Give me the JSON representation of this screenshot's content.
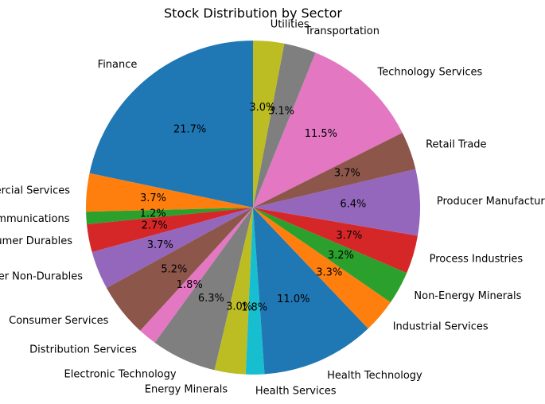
{
  "chart_data": {
    "type": "pie",
    "title": "Stock Distribution by Sector",
    "start_angle_deg": 90,
    "direction": "counterclockwise",
    "slices": [
      {
        "label": "Finance",
        "value": 21.7,
        "pct_label": "21.7%",
        "color": "#1f77b4"
      },
      {
        "label": "Commercial Services",
        "value": 3.7,
        "pct_label": "3.7%",
        "color": "#ff7f0e"
      },
      {
        "label": "Communications",
        "value": 1.2,
        "pct_label": "1.2%",
        "color": "#2ca02c"
      },
      {
        "label": "Consumer Durables",
        "value": 2.7,
        "pct_label": "2.7%",
        "color": "#d62728"
      },
      {
        "label": "Consumer Non-Durables",
        "value": 3.7,
        "pct_label": "3.7%",
        "color": "#9467bd"
      },
      {
        "label": "Consumer Services",
        "value": 5.2,
        "pct_label": "5.2%",
        "color": "#8c564b"
      },
      {
        "label": "Distribution Services",
        "value": 1.8,
        "pct_label": "1.8%",
        "color": "#e377c2"
      },
      {
        "label": "Electronic Technology",
        "value": 6.3,
        "pct_label": "6.3%",
        "color": "#7f7f7f"
      },
      {
        "label": "Energy Minerals",
        "value": 3.0,
        "pct_label": "3.0%",
        "color": "#bcbd22"
      },
      {
        "label": "Health Services",
        "value": 1.8,
        "pct_label": "1.8%",
        "color": "#17becf"
      },
      {
        "label": "Health Technology",
        "value": 11.0,
        "pct_label": "11.0%",
        "color": "#1f77b4"
      },
      {
        "label": "Industrial Services",
        "value": 3.3,
        "pct_label": "3.3%",
        "color": "#ff7f0e"
      },
      {
        "label": "Non-Energy Minerals",
        "value": 3.2,
        "pct_label": "3.2%",
        "color": "#2ca02c"
      },
      {
        "label": "Process Industries",
        "value": 3.7,
        "pct_label": "3.7%",
        "color": "#d62728"
      },
      {
        "label": "Producer Manufacturing",
        "value": 6.4,
        "pct_label": "6.4%",
        "color": "#9467bd"
      },
      {
        "label": "Retail Trade",
        "value": 3.7,
        "pct_label": "3.7%",
        "color": "#8c564b"
      },
      {
        "label": "Technology Services",
        "value": 11.5,
        "pct_label": "11.5%",
        "color": "#e377c2"
      },
      {
        "label": "Transportation",
        "value": 3.1,
        "pct_label": "3.1%",
        "color": "#7f7f7f"
      },
      {
        "label": "Utilities",
        "value": 3.0,
        "pct_label": "3.0%",
        "color": "#bcbd22"
      }
    ]
  }
}
